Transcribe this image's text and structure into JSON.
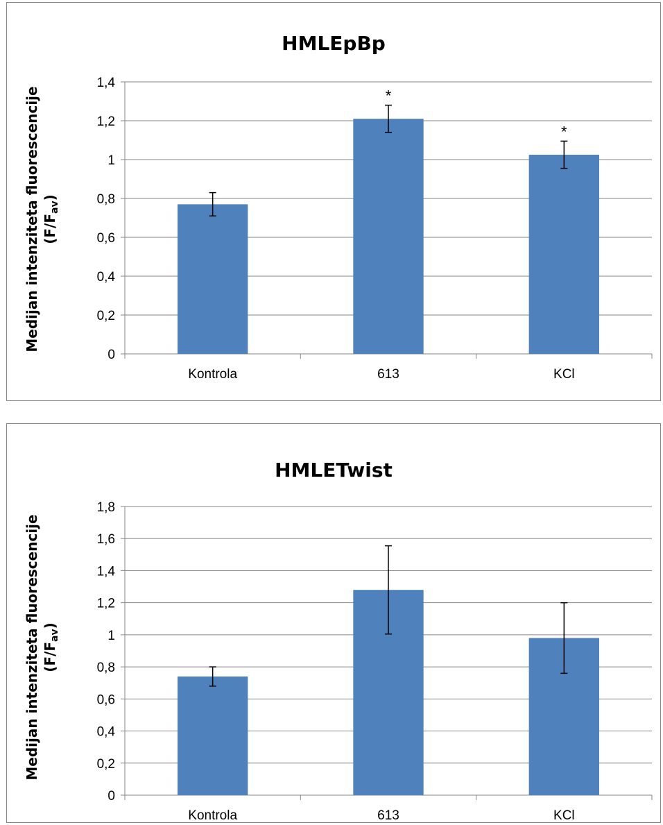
{
  "chart_data": [
    {
      "type": "bar",
      "title": "HMLEpBp",
      "ylabel_line1": "Medijan intenziteta fluorescencije",
      "ylabel_line2_prefix": "(F/F",
      "ylabel_line2_sub": "av",
      "ylabel_line2_suffix": ")",
      "categories": [
        "Kontrola",
        "613",
        "KCl"
      ],
      "values": [
        0.77,
        1.21,
        1.025
      ],
      "errors": [
        0.06,
        0.07,
        0.07
      ],
      "annotations": [
        "",
        "*",
        "*"
      ],
      "ylim": [
        0,
        1.4
      ],
      "yticks": [
        0,
        0.2,
        0.4,
        0.6,
        0.8,
        1,
        1.2,
        1.4
      ],
      "ytick_labels": [
        "0",
        "0,2",
        "0,4",
        "0,6",
        "0,8",
        "1",
        "1,2",
        "1,4"
      ],
      "grid": true,
      "bar_color": "#4f81bd"
    },
    {
      "type": "bar",
      "title": "HMLETwist",
      "ylabel_line1": "Medijan intenziteta fluorescencije",
      "ylabel_line2_prefix": "(F/F",
      "ylabel_line2_sub": "av",
      "ylabel_line2_suffix": ")",
      "categories": [
        "Kontrola",
        "613",
        "KCl"
      ],
      "values": [
        0.74,
        1.28,
        0.98
      ],
      "errors": [
        0.06,
        0.275,
        0.22
      ],
      "annotations": [
        "",
        "",
        ""
      ],
      "ylim": [
        0,
        1.8
      ],
      "yticks": [
        0,
        0.2,
        0.4,
        0.6,
        0.8,
        1,
        1.2,
        1.4,
        1.6,
        1.8
      ],
      "ytick_labels": [
        "0",
        "0,2",
        "0,4",
        "0,6",
        "0,8",
        "1",
        "1,2",
        "1,4",
        "1,6",
        "1,8"
      ],
      "grid": true,
      "bar_color": "#4f81bd"
    }
  ]
}
